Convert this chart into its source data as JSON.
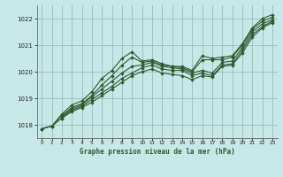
{
  "title": "Graphe pression niveau de la mer (hPa)",
  "background_color": "#c8e8e8",
  "grid_color": "#99bbbb",
  "line_color": "#2d5a2d",
  "xlim": [
    -0.5,
    23.5
  ],
  "ylim": [
    1017.5,
    1022.5
  ],
  "xticks": [
    0,
    1,
    2,
    3,
    4,
    5,
    6,
    7,
    8,
    9,
    10,
    11,
    12,
    13,
    14,
    15,
    16,
    17,
    18,
    19,
    20,
    21,
    22,
    23
  ],
  "yticks": [
    1018,
    1019,
    1020,
    1021,
    1022
  ],
  "figsize": [
    3.2,
    2.0
  ],
  "dpi": 100,
  "series": [
    {
      "x": [
        0,
        1,
        2,
        3,
        4,
        5,
        6,
        7,
        8,
        9,
        10,
        11,
        12,
        13,
        14,
        15,
        16,
        17,
        18,
        19,
        20,
        21,
        22,
        23
      ],
      "y": [
        1017.85,
        1017.95,
        1018.4,
        1018.75,
        1018.9,
        1019.25,
        1019.75,
        1020.05,
        1020.5,
        1020.75,
        1020.4,
        1020.45,
        1020.3,
        1020.2,
        1020.2,
        1020.05,
        1020.6,
        1020.5,
        1020.55,
        1020.6,
        1021.05,
        1021.65,
        1022.0,
        1022.15
      ]
    },
    {
      "x": [
        0,
        1,
        2,
        3,
        4,
        5,
        6,
        7,
        8,
        9,
        10,
        11,
        12,
        13,
        14,
        15,
        16,
        17,
        18,
        19,
        20,
        21,
        22,
        23
      ],
      "y": [
        1017.85,
        1017.95,
        1018.35,
        1018.65,
        1018.8,
        1019.1,
        1019.5,
        1019.85,
        1020.25,
        1020.55,
        1020.35,
        1020.4,
        1020.25,
        1020.2,
        1020.15,
        1020.0,
        1020.45,
        1020.45,
        1020.45,
        1020.55,
        1021.0,
        1021.6,
        1021.9,
        1022.05
      ]
    },
    {
      "x": [
        2,
        3,
        4,
        5,
        6,
        7,
        8,
        9,
        10,
        11,
        12,
        13,
        14,
        15,
        16,
        17,
        18,
        19,
        20,
        21,
        22,
        23
      ],
      "y": [
        1018.3,
        1018.6,
        1018.75,
        1019.05,
        1019.35,
        1019.65,
        1019.95,
        1020.2,
        1020.25,
        1020.35,
        1020.2,
        1020.15,
        1020.1,
        1019.95,
        1020.05,
        1019.95,
        1020.35,
        1020.4,
        1020.9,
        1021.5,
        1021.8,
        1021.95
      ]
    },
    {
      "x": [
        2,
        3,
        4,
        5,
        6,
        7,
        8,
        9,
        10,
        11,
        12,
        13,
        14,
        15,
        16,
        17,
        18,
        19,
        20,
        21,
        22,
        23
      ],
      "y": [
        1018.25,
        1018.55,
        1018.7,
        1018.95,
        1019.2,
        1019.45,
        1019.75,
        1019.95,
        1020.15,
        1020.25,
        1020.1,
        1020.05,
        1020.05,
        1019.85,
        1019.95,
        1019.85,
        1020.25,
        1020.3,
        1020.8,
        1021.4,
        1021.7,
        1021.9
      ]
    },
    {
      "x": [
        0,
        1,
        2,
        3,
        4,
        5,
        6,
        7,
        8,
        9,
        10,
        11,
        12,
        13,
        14,
        15,
        16,
        17,
        18,
        19,
        20,
        21,
        22,
        23
      ],
      "y": [
        1017.85,
        1017.95,
        1018.25,
        1018.5,
        1018.65,
        1018.85,
        1019.1,
        1019.35,
        1019.6,
        1019.85,
        1020.0,
        1020.1,
        1019.95,
        1019.9,
        1019.85,
        1019.7,
        1019.85,
        1019.8,
        1020.2,
        1020.25,
        1020.7,
        1021.3,
        1021.65,
        1021.85
      ]
    }
  ]
}
